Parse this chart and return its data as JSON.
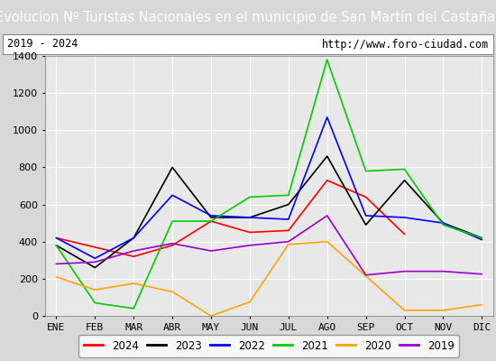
{
  "title": "Evolucion Nº Turistas Nacionales en el municipio de San Martín del Castañar",
  "subtitle_left": "2019 - 2024",
  "subtitle_right": "http://www.foro-ciudad.com",
  "months": [
    "ENE",
    "FEB",
    "MAR",
    "ABR",
    "MAY",
    "JUN",
    "JUL",
    "AGO",
    "SEP",
    "OCT",
    "NOV",
    "DIC"
  ],
  "ylim": [
    0,
    1400
  ],
  "yticks": [
    0,
    200,
    400,
    600,
    800,
    1000,
    1200,
    1400
  ],
  "series": {
    "2024": {
      "color": "#ff0000",
      "values": [
        420,
        370,
        320,
        380,
        510,
        450,
        460,
        730,
        640,
        440,
        null,
        null
      ]
    },
    "2023": {
      "color": "#000000",
      "values": [
        380,
        260,
        420,
        800,
        530,
        530,
        600,
        860,
        490,
        730,
        500,
        420
      ]
    },
    "2022": {
      "color": "#0000ff",
      "values": [
        420,
        310,
        420,
        650,
        540,
        530,
        520,
        1070,
        540,
        530,
        500,
        410
      ]
    },
    "2021": {
      "color": "#00cc00",
      "values": [
        380,
        70,
        40,
        510,
        510,
        640,
        650,
        1380,
        780,
        790,
        490,
        420
      ]
    },
    "2020": {
      "color": "#ffa500",
      "values": [
        210,
        140,
        175,
        130,
        0,
        75,
        385,
        400,
        215,
        30,
        30,
        60
      ]
    },
    "2019": {
      "color": "#9900cc",
      "values": [
        280,
        290,
        350,
        390,
        350,
        380,
        400,
        540,
        220,
        240,
        240,
        225
      ]
    }
  },
  "title_bgcolor": "#3a6abf",
  "title_color": "#ffffff",
  "title_fontsize": 10.5,
  "subtitle_fontsize": 8.5,
  "axis_label_fontsize": 8,
  "legend_fontsize": 8.5,
  "outer_bg": "#d8d8d8",
  "inner_bg": "#e8e8e8",
  "plot_bg": "#e8e8e8"
}
